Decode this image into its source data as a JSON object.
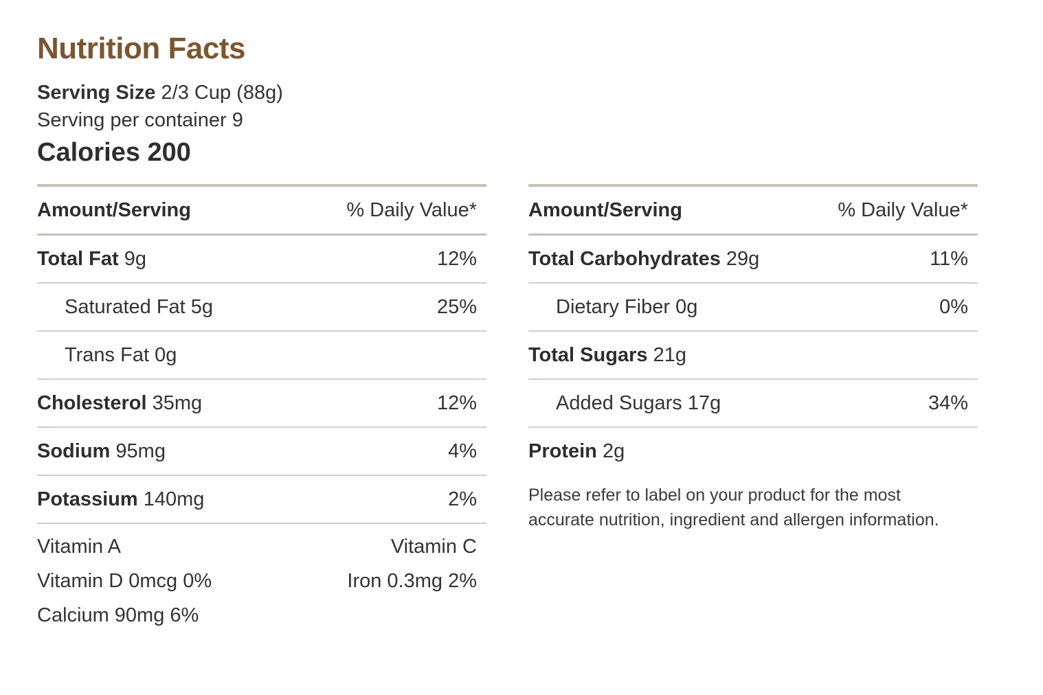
{
  "title": "Nutrition Facts",
  "serving_size_label": "Serving Size",
  "serving_size_value": "2/3 Cup (88g)",
  "servings_per_container": "Serving per container 9",
  "calories": "Calories 200",
  "header": {
    "amount": "Amount/Serving",
    "daily_value": "% Daily Value*"
  },
  "left_rows": [
    {
      "name": "Total Fat",
      "amount": "9g",
      "pct": "12%"
    },
    {
      "name": "Saturated Fat",
      "amount": "5g",
      "pct": "25%"
    },
    {
      "name": "Trans Fat",
      "amount": "0g",
      "pct": ""
    },
    {
      "name": "Cholesterol",
      "amount": "35mg",
      "pct": "12%"
    },
    {
      "name": "Sodium",
      "amount": "95mg",
      "pct": "4%"
    },
    {
      "name": "Potassium",
      "amount": "140mg",
      "pct": "2%"
    }
  ],
  "vitamins": [
    {
      "left": "Vitamin A",
      "right": "Vitamin C"
    },
    {
      "left": "Vitamin D 0mcg 0%",
      "right": "Iron 0.3mg 2%"
    },
    {
      "left": "Calcium 90mg 6%",
      "right": ""
    }
  ],
  "right_rows": [
    {
      "name": "Total Carbohydrates",
      "amount": "29g",
      "pct": "11%"
    },
    {
      "name": "Dietary Fiber",
      "amount": "0g",
      "pct": "0%"
    },
    {
      "name": "Total Sugars",
      "amount": "21g",
      "pct": ""
    },
    {
      "name": "Added Sugars",
      "amount": "17g",
      "pct": "34%"
    },
    {
      "name": "Protein",
      "amount": "2g",
      "pct": ""
    }
  ],
  "disclaimer": "Please refer to label on your product for the most accurate nutrition, ingredient and allergen information.",
  "colors": {
    "title": "#7a5632",
    "rule": "#c9c0b3",
    "text": "#333333"
  }
}
